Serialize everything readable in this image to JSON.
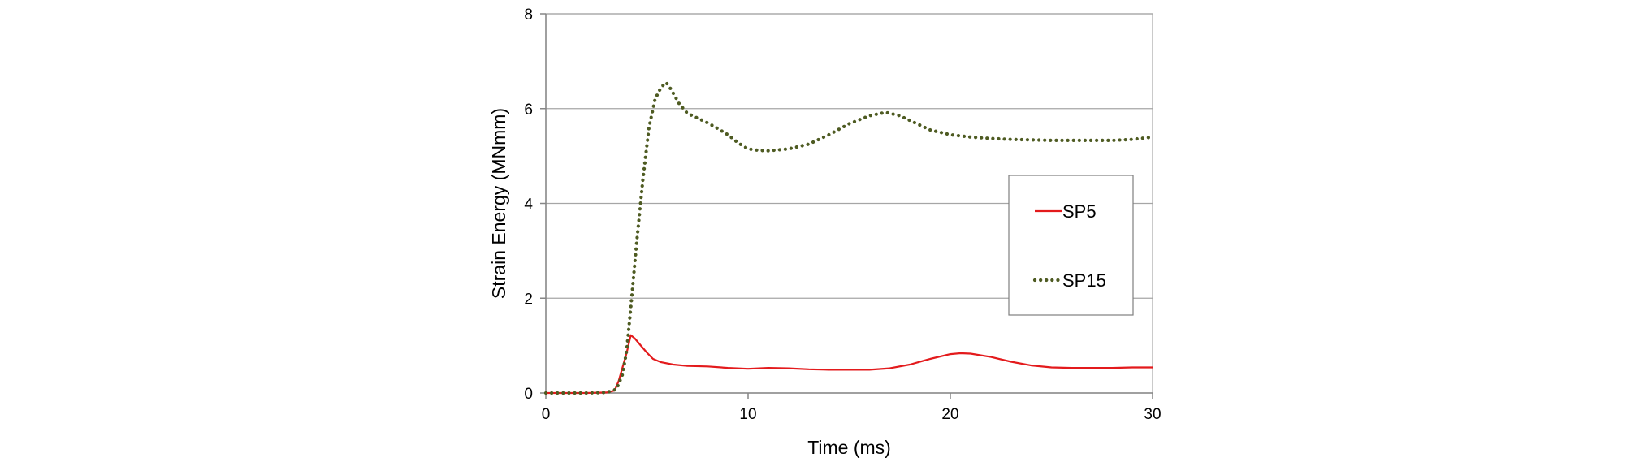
{
  "chart_data": {
    "type": "line",
    "title": "",
    "xlabel": "Time (ms)",
    "ylabel": "Strain Energy (MNmm)",
    "xlim": [
      0,
      30
    ],
    "ylim": [
      0,
      8
    ],
    "x_ticks": [
      0,
      10,
      20,
      30
    ],
    "y_ticks": [
      0,
      2,
      4,
      6,
      8
    ],
    "grid": "horizontal",
    "legend_position": "right",
    "series": [
      {
        "name": "SP5",
        "color": "#e31a1c",
        "style": "solid",
        "points": [
          [
            0,
            0
          ],
          [
            1,
            0
          ],
          [
            2,
            0
          ],
          [
            3,
            0.01
          ],
          [
            3.4,
            0.05
          ],
          [
            3.6,
            0.25
          ],
          [
            3.8,
            0.55
          ],
          [
            4.0,
            0.85
          ],
          [
            4.2,
            1.22
          ],
          [
            4.4,
            1.15
          ],
          [
            4.7,
            1.0
          ],
          [
            5.0,
            0.85
          ],
          [
            5.3,
            0.72
          ],
          [
            5.7,
            0.65
          ],
          [
            6.3,
            0.6
          ],
          [
            7.0,
            0.57
          ],
          [
            8.0,
            0.56
          ],
          [
            9.0,
            0.53
          ],
          [
            10.0,
            0.51
          ],
          [
            11.0,
            0.53
          ],
          [
            12.0,
            0.52
          ],
          [
            13.0,
            0.5
          ],
          [
            14.0,
            0.49
          ],
          [
            15.0,
            0.49
          ],
          [
            16.0,
            0.49
          ],
          [
            17.0,
            0.52
          ],
          [
            18.0,
            0.6
          ],
          [
            19.0,
            0.72
          ],
          [
            20.0,
            0.82
          ],
          [
            20.5,
            0.84
          ],
          [
            21.0,
            0.83
          ],
          [
            22.0,
            0.76
          ],
          [
            23.0,
            0.66
          ],
          [
            24.0,
            0.58
          ],
          [
            25.0,
            0.54
          ],
          [
            26.0,
            0.53
          ],
          [
            27.0,
            0.53
          ],
          [
            28.0,
            0.53
          ],
          [
            29.0,
            0.54
          ],
          [
            30.0,
            0.54
          ]
        ]
      },
      {
        "name": "SP15",
        "color": "#4e5b22",
        "style": "dotted",
        "points": [
          [
            0,
            0
          ],
          [
            1,
            0
          ],
          [
            2,
            0
          ],
          [
            3,
            0.01
          ],
          [
            3.5,
            0.08
          ],
          [
            3.8,
            0.4
          ],
          [
            4.0,
            0.9
          ],
          [
            4.2,
            1.8
          ],
          [
            4.5,
            3.2
          ],
          [
            4.8,
            4.5
          ],
          [
            5.1,
            5.6
          ],
          [
            5.4,
            6.2
          ],
          [
            5.7,
            6.45
          ],
          [
            5.95,
            6.55
          ],
          [
            6.2,
            6.4
          ],
          [
            6.6,
            6.1
          ],
          [
            7.0,
            5.9
          ],
          [
            7.5,
            5.8
          ],
          [
            8.0,
            5.7
          ],
          [
            8.5,
            5.58
          ],
          [
            9.0,
            5.45
          ],
          [
            9.5,
            5.28
          ],
          [
            10.0,
            5.15
          ],
          [
            10.5,
            5.12
          ],
          [
            11.0,
            5.11
          ],
          [
            12.0,
            5.15
          ],
          [
            13.0,
            5.25
          ],
          [
            14.0,
            5.45
          ],
          [
            15.0,
            5.68
          ],
          [
            16.0,
            5.85
          ],
          [
            16.8,
            5.92
          ],
          [
            17.5,
            5.85
          ],
          [
            18.0,
            5.75
          ],
          [
            19.0,
            5.55
          ],
          [
            20.0,
            5.45
          ],
          [
            21.0,
            5.4
          ],
          [
            22.0,
            5.37
          ],
          [
            23.0,
            5.35
          ],
          [
            24.0,
            5.34
          ],
          [
            25.0,
            5.33
          ],
          [
            26.0,
            5.33
          ],
          [
            27.0,
            5.33
          ],
          [
            28.0,
            5.33
          ],
          [
            29.0,
            5.35
          ],
          [
            30.0,
            5.4
          ]
        ]
      }
    ]
  }
}
